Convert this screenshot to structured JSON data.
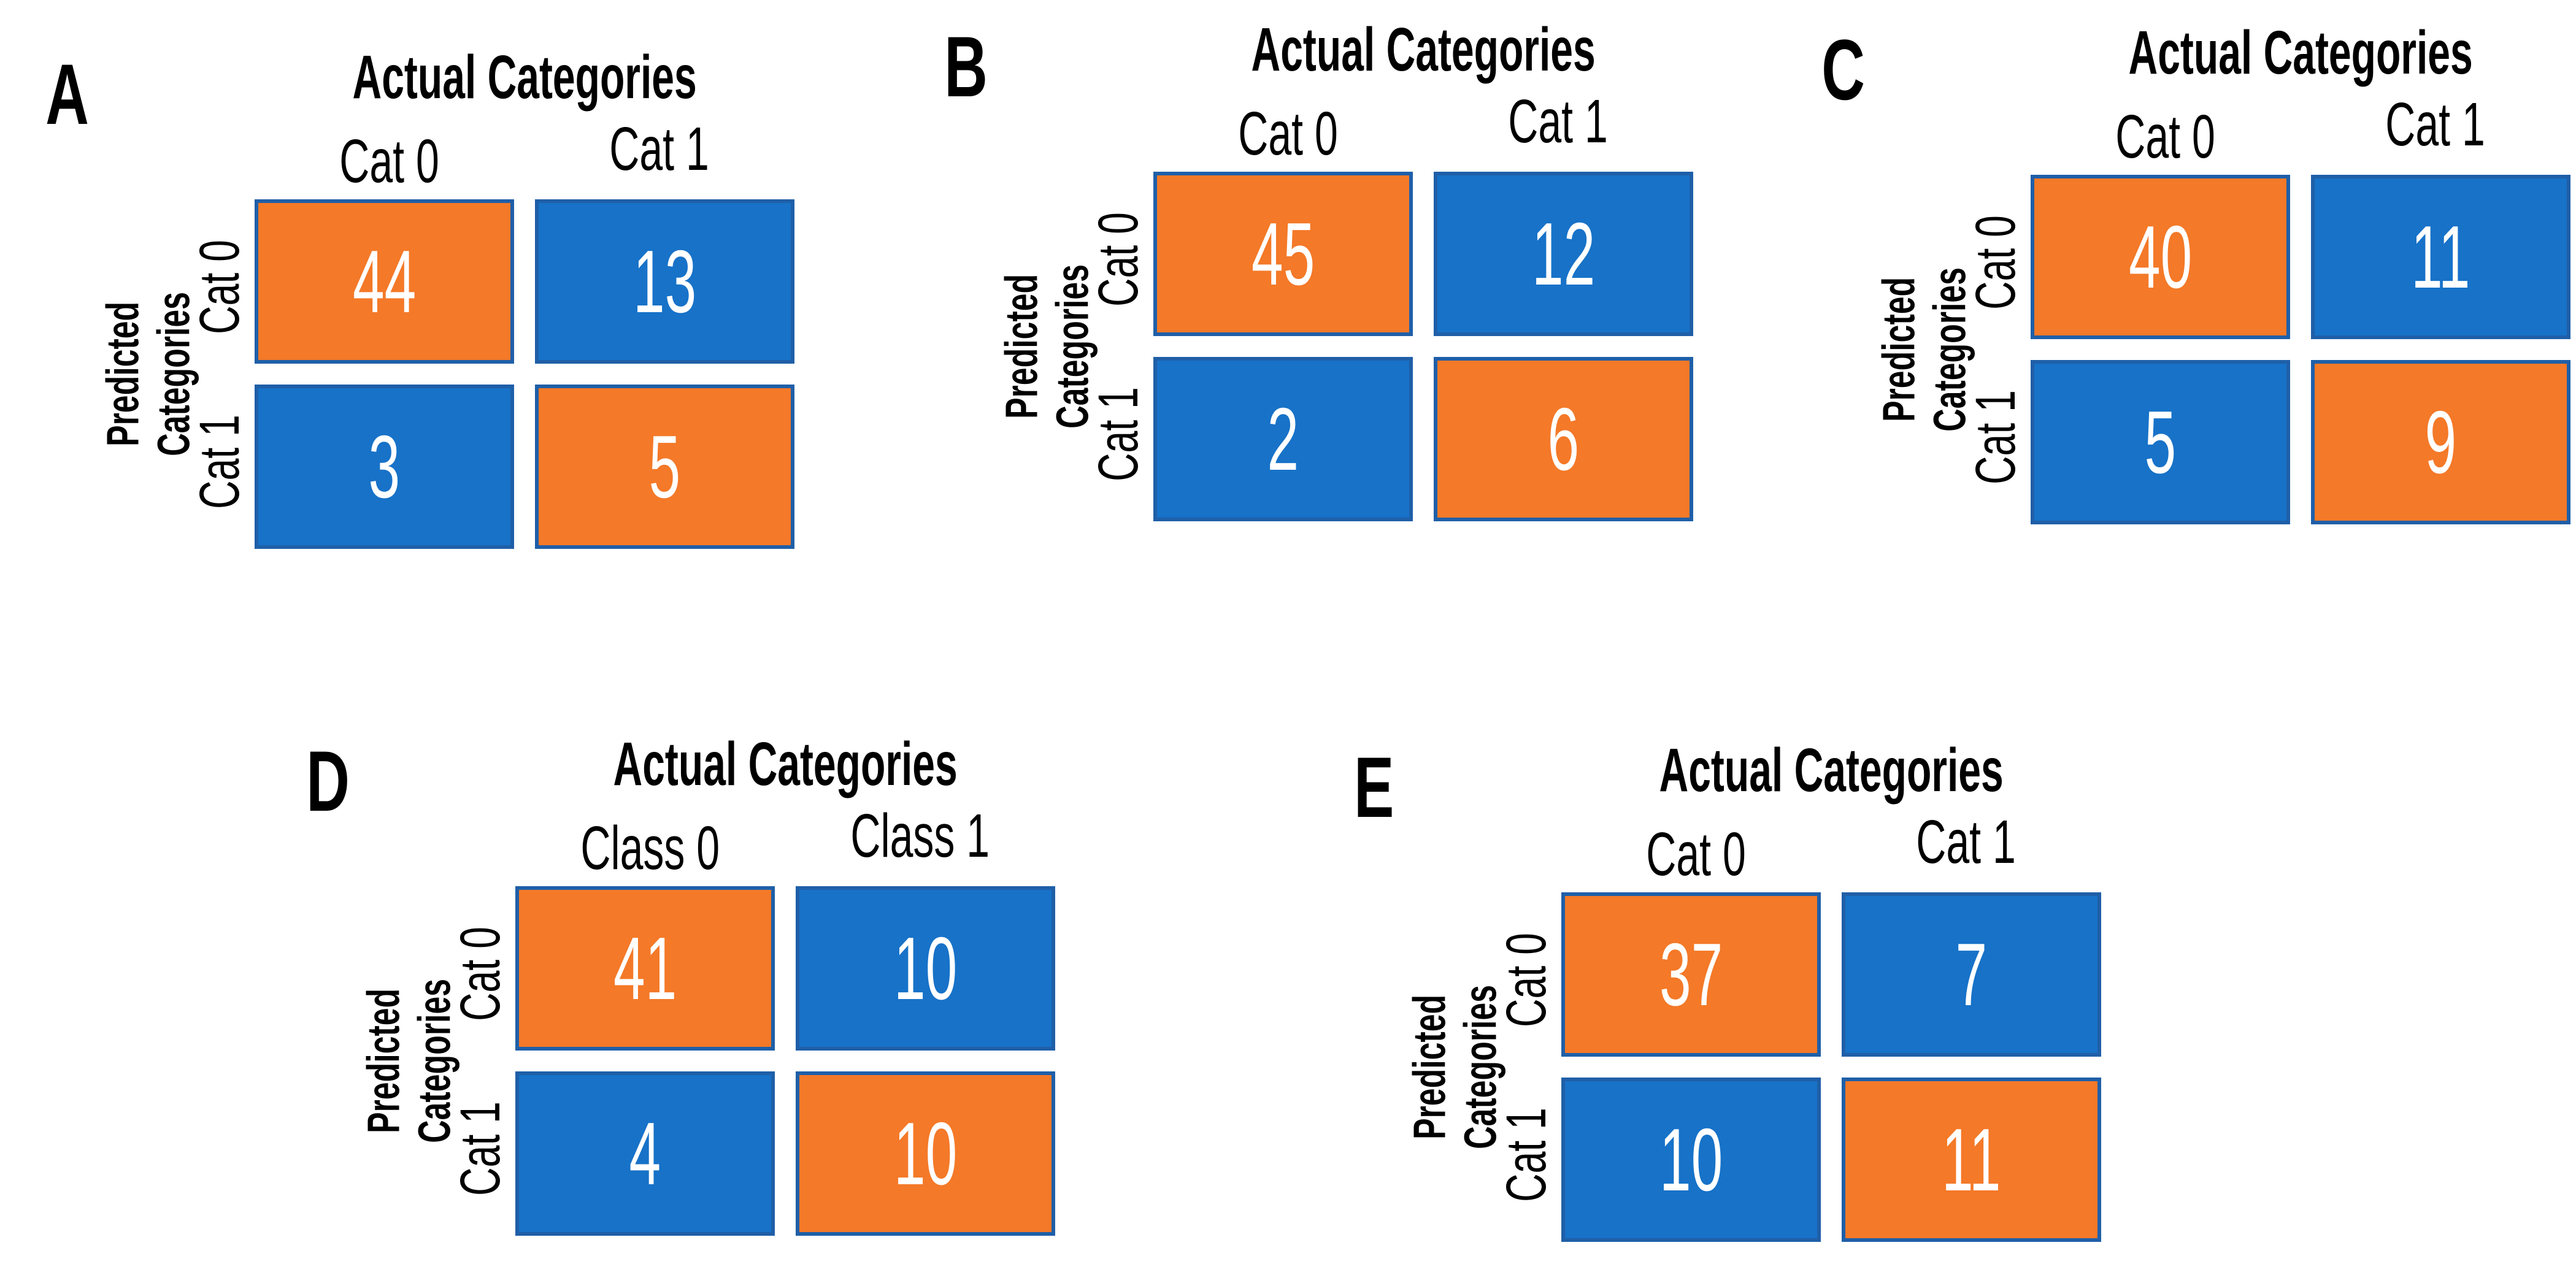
{
  "figure": {
    "description": "Five 2x2 confusion matrices labeled A-E on a white background",
    "colors": {
      "diagonal_fill": "#F47928",
      "off_diagonal_fill": "#1772C8",
      "cell_border": "#1F5FA8",
      "value_text": "#FFFFFF",
      "label_text": "#000000",
      "background": "#FFFFFF"
    }
  },
  "chart_data": [
    {
      "panel_label": "A",
      "type": "heatmap",
      "title": "Actual Categories",
      "x_axis_labels": [
        "Cat 0",
        "Cat 1"
      ],
      "y_axis_title": "Predicted Categories",
      "y_axis_title_lines": [
        "Predicted",
        "Categories"
      ],
      "y_axis_labels": [
        "Cat 0",
        "Cat 1"
      ],
      "values": [
        [
          44,
          13
        ],
        [
          3,
          5
        ]
      ],
      "cell_color_rule": "diagonal orange, off-diagonal blue"
    },
    {
      "panel_label": "B",
      "type": "heatmap",
      "title": "Actual Categories",
      "x_axis_labels": [
        "Cat 0",
        "Cat 1"
      ],
      "y_axis_title": "Predicted Categories",
      "y_axis_title_lines": [
        "Predicted",
        "Categories"
      ],
      "y_axis_labels": [
        "Cat 0",
        "Cat 1"
      ],
      "values": [
        [
          45,
          12
        ],
        [
          2,
          6
        ]
      ],
      "cell_color_rule": "diagonal orange, off-diagonal blue"
    },
    {
      "panel_label": "C",
      "type": "heatmap",
      "title": "Actual Categories",
      "x_axis_labels": [
        "Cat 0",
        "Cat 1"
      ],
      "y_axis_title": "Predicted Categories",
      "y_axis_title_lines": [
        "Predicted",
        "Categories"
      ],
      "y_axis_labels": [
        "Cat 0",
        "Cat 1"
      ],
      "values": [
        [
          40,
          11
        ],
        [
          5,
          9
        ]
      ],
      "cell_color_rule": "diagonal orange, off-diagonal blue"
    },
    {
      "panel_label": "D",
      "type": "heatmap",
      "title": "Actual Categories",
      "x_axis_labels": [
        "Class 0",
        "Class 1"
      ],
      "y_axis_title": "Predicted Categories",
      "y_axis_title_lines": [
        "Predicted",
        "Categories"
      ],
      "y_axis_labels": [
        "Cat 0",
        "Cat 1"
      ],
      "values": [
        [
          41,
          10
        ],
        [
          4,
          10
        ]
      ],
      "cell_color_rule": "diagonal orange, off-diagonal blue"
    },
    {
      "panel_label": "E",
      "type": "heatmap",
      "title": "Actual Categories",
      "x_axis_labels": [
        "Cat 0",
        "Cat 1"
      ],
      "y_axis_title": "Predicted Categories",
      "y_axis_title_lines": [
        "Predicted",
        "Categories"
      ],
      "y_axis_labels": [
        "Cat 0",
        "Cat 1"
      ],
      "values": [
        [
          37,
          7
        ],
        [
          10,
          11
        ]
      ],
      "cell_color_rule": "diagonal orange, off-diagonal blue"
    }
  ]
}
